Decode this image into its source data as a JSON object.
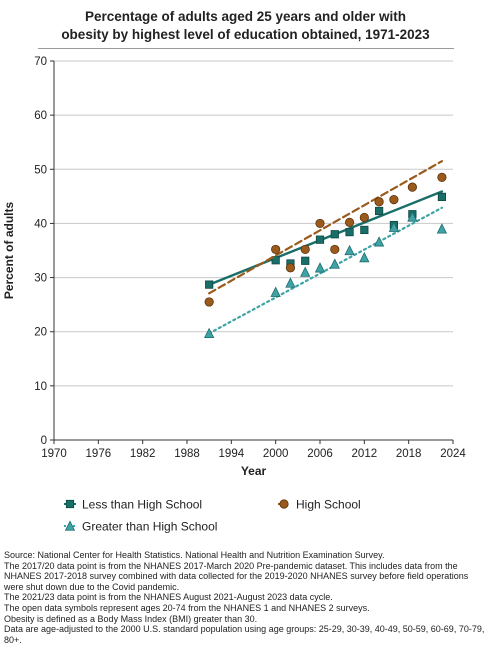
{
  "title_line1": "Percentage of adults aged 25 years and older with",
  "title_line2": "obesity by highest level of education obtained, 1971-2023",
  "chart_data": {
    "type": "scatter",
    "xlabel": "Year",
    "ylabel": "Percent of adults",
    "xlim": [
      1970,
      2024
    ],
    "ylim": [
      0,
      70
    ],
    "xticks": [
      1970,
      1976,
      1982,
      1988,
      1994,
      2000,
      2006,
      2012,
      2018,
      2024
    ],
    "yticks": [
      0,
      10,
      20,
      30,
      40,
      50,
      60,
      70
    ],
    "grid": "horizontal",
    "legend_position": "bottom",
    "series": [
      {
        "name": "Less than High School",
        "marker": "square",
        "color": "#1a6e68",
        "line_style": "solid",
        "x": [
          1991,
          2000,
          2002,
          2004,
          2006,
          2008,
          2010,
          2012,
          2014,
          2016,
          2018.5,
          2022.5
        ],
        "y": [
          28.7,
          33.2,
          32.6,
          33.1,
          37.0,
          38.0,
          38.4,
          38.8,
          42.3,
          39.7,
          41.7,
          44.9
        ],
        "trend": [
          [
            1991,
            28.7
          ],
          [
            2022.5,
            45.9
          ]
        ]
      },
      {
        "name": "High School",
        "marker": "circle",
        "color": "#9a5a1c",
        "line_style": "dashed",
        "x": [
          1991,
          2000,
          2002,
          2004,
          2006,
          2008,
          2010,
          2012,
          2014,
          2016,
          2018.5,
          2022.5
        ],
        "y": [
          25.5,
          35.2,
          31.8,
          35.2,
          40.0,
          35.2,
          40.2,
          41.1,
          44.0,
          44.4,
          46.7,
          48.5
        ],
        "trend": [
          [
            1991,
            27.1
          ],
          [
            2022.5,
            51.5
          ]
        ]
      },
      {
        "name": "Greater than High School",
        "marker": "triangle",
        "color": "#3fa3a6",
        "line_style": "dotted",
        "x": [
          1991,
          2000,
          2002,
          2004,
          2006,
          2008,
          2010,
          2012,
          2014,
          2016,
          2018.5,
          2022.5
        ],
        "y": [
          19.7,
          27.3,
          29.0,
          31.0,
          31.8,
          32.5,
          35.0,
          33.7,
          36.6,
          39.3,
          41.2,
          39.0
        ],
        "trend": [
          [
            1991,
            19.7
          ],
          [
            2022.5,
            42.9
          ]
        ]
      }
    ]
  },
  "notes": [
    "Source: National Center for Health Statistics. National Health and Nutrition Examination Survey.",
    "The 2017/20 data point is from the NHANES 2017-March 2020 Pre-pandemic dataset. This includes data from the NHANES 2017-2018 survey combined with data collected for the 2019-2020 NHANES survey before field operations were shut down due to the Covid pandemic.",
    "The 2021/23 data point is from the NHANES August 2021-August 2023 data cycle.",
    "The open data symbols represent ages 20-74 from the NHANES 1 and NHANES 2 surveys.",
    "Obesity is defined as a Body Mass Index (BMI) greater than 30.",
    "Data are age-adjusted to the 2000 U.S. standard population using age groups: 25-29, 30-39, 40-49, 50-59, 60-69, 70-79, 80+."
  ]
}
